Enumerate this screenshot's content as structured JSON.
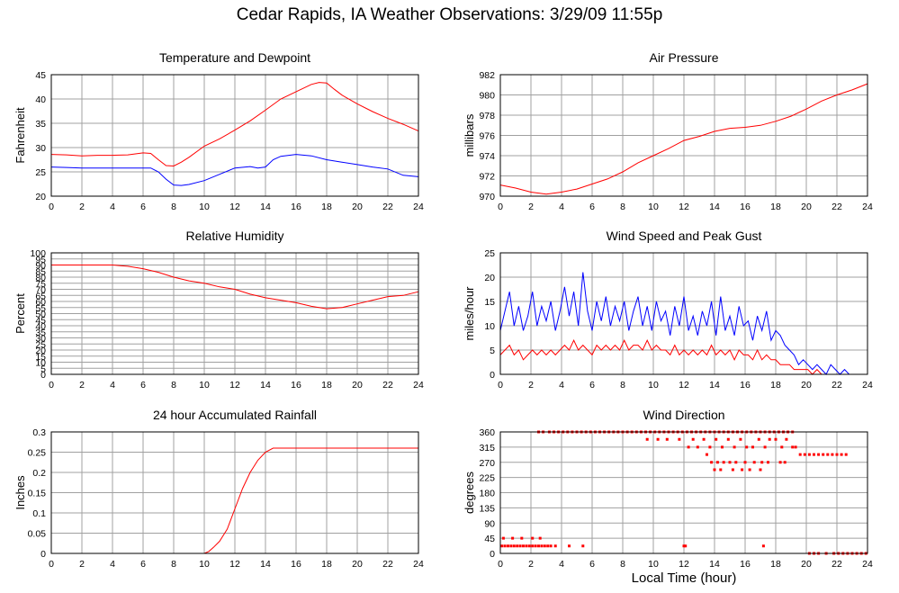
{
  "title": "Cedar Rapids, IA Weather Observations: 3/29/09 11:55p",
  "x_label": "Local Time (hour)",
  "colors": {
    "red": "#ff0000",
    "blue": "#0000ff",
    "grid": "#a0a0a0"
  },
  "chart_data": [
    {
      "id": "temp",
      "type": "line",
      "title": "Temperature and Dewpoint",
      "xlabel": "",
      "ylabel": "Fahrenheit",
      "xlim": [
        0,
        24
      ],
      "ylim": [
        20,
        45
      ],
      "xticks": [
        0,
        2,
        4,
        6,
        8,
        10,
        12,
        14,
        16,
        18,
        20,
        22,
        24
      ],
      "yticks": [
        20,
        25,
        30,
        35,
        40,
        45
      ],
      "grid": true,
      "series": [
        {
          "color": "#ff0000",
          "x": [
            0,
            1,
            2,
            3,
            4,
            5,
            6,
            6.5,
            7,
            7.5,
            8,
            8.5,
            9,
            10,
            11,
            12,
            13,
            14,
            15,
            16,
            17,
            17.5,
            18,
            18.5,
            19,
            20,
            21,
            22,
            23,
            24
          ],
          "y": [
            28.6,
            28.5,
            28.3,
            28.4,
            28.4,
            28.5,
            28.9,
            28.8,
            27.5,
            26.3,
            26.2,
            27,
            28,
            30.3,
            31.8,
            33.6,
            35.5,
            37.7,
            40,
            41.5,
            43,
            43.4,
            43.3,
            42,
            40.8,
            39,
            37.4,
            36,
            34.8,
            33.4
          ]
        },
        {
          "color": "#0000ff",
          "x": [
            0,
            1,
            2,
            3,
            4,
            5,
            6,
            6.5,
            7,
            7.5,
            8,
            8.5,
            9,
            10,
            11,
            12,
            13,
            13.5,
            14,
            14.5,
            15,
            16,
            17,
            18,
            19,
            20,
            21,
            22,
            23,
            24
          ],
          "y": [
            26,
            25.9,
            25.8,
            25.8,
            25.8,
            25.8,
            25.8,
            25.8,
            25,
            23.5,
            22.3,
            22.2,
            22.4,
            23.2,
            24.5,
            25.8,
            26.1,
            25.8,
            26,
            27.5,
            28.2,
            28.6,
            28.3,
            27.5,
            27,
            26.5,
            26,
            25.6,
            24.3,
            24
          ]
        }
      ]
    },
    {
      "id": "pressure",
      "type": "line",
      "title": "Air Pressure",
      "xlabel": "",
      "ylabel": "millibars",
      "xlim": [
        0,
        24
      ],
      "ylim": [
        970,
        982
      ],
      "xticks": [
        0,
        2,
        4,
        6,
        8,
        10,
        12,
        14,
        16,
        18,
        20,
        22,
        24
      ],
      "yticks": [
        970,
        972,
        974,
        976,
        978,
        980,
        982
      ],
      "grid": true,
      "series": [
        {
          "color": "#ff0000",
          "x": [
            0,
            1,
            2,
            3,
            4,
            5,
            6,
            7,
            8,
            9,
            10,
            11,
            12,
            13,
            14,
            15,
            16,
            17,
            18,
            19,
            20,
            21,
            22,
            23,
            24
          ],
          "y": [
            971.1,
            970.8,
            970.4,
            970.2,
            970.4,
            970.7,
            971.2,
            971.7,
            972.4,
            973.3,
            974,
            974.7,
            975.5,
            975.9,
            976.4,
            976.7,
            976.8,
            977,
            977.4,
            977.9,
            978.6,
            979.4,
            980,
            980.5,
            981.1
          ]
        }
      ]
    },
    {
      "id": "humidity",
      "type": "line",
      "title": "Relative Humidity",
      "xlabel": "",
      "ylabel": "Percent",
      "xlim": [
        0,
        24
      ],
      "ylim": [
        0,
        100
      ],
      "xticks": [
        0,
        2,
        4,
        6,
        8,
        10,
        12,
        14,
        16,
        18,
        20,
        22,
        24
      ],
      "yticks": [
        0,
        5,
        10,
        15,
        20,
        25,
        30,
        35,
        40,
        45,
        50,
        55,
        60,
        65,
        70,
        75,
        80,
        85,
        90,
        95,
        100
      ],
      "grid": true,
      "series": [
        {
          "color": "#ff0000",
          "x": [
            0,
            1,
            2,
            3,
            4,
            4.5,
            5,
            6,
            7,
            8,
            9,
            10,
            11,
            12,
            13,
            14,
            15,
            16,
            17,
            18,
            19,
            20,
            21,
            22,
            23,
            24
          ],
          "y": [
            90,
            90,
            90,
            90,
            90,
            89.5,
            89,
            87,
            84,
            80,
            77,
            75,
            72,
            70,
            66,
            63,
            61,
            59,
            56,
            54,
            55,
            58,
            61,
            64,
            65,
            68
          ]
        }
      ]
    },
    {
      "id": "wind",
      "type": "line",
      "title": "Wind Speed and Peak Gust",
      "xlabel": "",
      "ylabel": "miles/hour",
      "xlim": [
        0,
        24
      ],
      "ylim": [
        0,
        25
      ],
      "xticks": [
        0,
        2,
        4,
        6,
        8,
        10,
        12,
        14,
        16,
        18,
        20,
        22,
        24
      ],
      "yticks": [
        0,
        5,
        10,
        15,
        20,
        25
      ],
      "grid": true,
      "series": [
        {
          "color": "#0000ff",
          "x": [
            0,
            0.3,
            0.6,
            0.9,
            1.2,
            1.5,
            1.8,
            2.1,
            2.4,
            2.7,
            3,
            3.3,
            3.6,
            3.9,
            4.2,
            4.5,
            4.8,
            5.1,
            5.4,
            5.7,
            6,
            6.3,
            6.6,
            6.9,
            7.2,
            7.5,
            7.8,
            8.1,
            8.4,
            8.7,
            9,
            9.3,
            9.6,
            9.9,
            10.2,
            10.5,
            10.8,
            11.1,
            11.4,
            11.7,
            12,
            12.3,
            12.6,
            12.9,
            13.2,
            13.5,
            13.8,
            14.1,
            14.4,
            14.7,
            15,
            15.3,
            15.6,
            15.9,
            16.2,
            16.5,
            16.8,
            17.1,
            17.4,
            17.7,
            18,
            18.3,
            18.6,
            18.9,
            19.2,
            19.5,
            19.8,
            20.1,
            20.4,
            20.7,
            21,
            21.3,
            21.6,
            21.9,
            22.2,
            22.5,
            22.8,
            23.1,
            23.4,
            23.7,
            24
          ],
          "y": [
            9,
            13,
            17,
            10,
            14,
            9,
            12,
            17,
            10,
            14,
            11,
            15,
            9,
            13,
            18,
            12,
            17,
            10,
            21,
            13,
            9,
            15,
            11,
            16,
            10,
            14,
            11,
            15,
            9,
            13,
            16,
            10,
            14,
            9,
            15,
            11,
            13,
            8,
            14,
            10,
            16,
            9,
            12,
            8,
            13,
            10,
            15,
            8,
            16,
            9,
            12,
            8,
            14,
            10,
            11,
            7,
            12,
            9,
            13,
            7,
            9,
            8,
            6,
            5,
            4,
            2,
            3,
            2,
            1,
            2,
            1,
            0,
            2,
            1,
            0,
            1,
            0,
            0,
            0,
            0,
            0
          ],
          "_note": ""
        },
        {
          "color": "#ff0000",
          "x": [
            0,
            0.3,
            0.6,
            0.9,
            1.2,
            1.5,
            1.8,
            2.1,
            2.4,
            2.7,
            3,
            3.3,
            3.6,
            3.9,
            4.2,
            4.5,
            4.8,
            5.1,
            5.4,
            5.7,
            6,
            6.3,
            6.6,
            6.9,
            7.2,
            7.5,
            7.8,
            8.1,
            8.4,
            8.7,
            9,
            9.3,
            9.6,
            9.9,
            10.2,
            10.5,
            10.8,
            11.1,
            11.4,
            11.7,
            12,
            12.3,
            12.6,
            12.9,
            13.2,
            13.5,
            13.8,
            14.1,
            14.4,
            14.7,
            15,
            15.3,
            15.6,
            15.9,
            16.2,
            16.5,
            16.8,
            17.1,
            17.4,
            17.7,
            18,
            18.3,
            18.6,
            18.9,
            19.2,
            19.5,
            19.8,
            20.1,
            20.4,
            20.7,
            21,
            21.3,
            21.6,
            21.9,
            22.2,
            22.5,
            22.8,
            23.1,
            23.4,
            23.7,
            24
          ],
          "y": [
            4,
            5,
            6,
            4,
            5,
            3,
            4,
            5,
            4,
            5,
            4,
            5,
            4,
            5,
            6,
            5,
            7,
            5,
            6,
            5,
            4,
            6,
            5,
            6,
            5,
            6,
            5,
            7,
            5,
            6,
            6,
            5,
            7,
            5,
            6,
            5,
            5,
            4,
            6,
            4,
            5,
            4,
            5,
            4,
            5,
            4,
            6,
            4,
            5,
            4,
            5,
            3,
            5,
            4,
            4,
            3,
            5,
            3,
            4,
            3,
            3,
            2,
            2,
            2,
            1,
            1,
            1,
            1,
            0,
            1,
            0,
            0,
            0,
            0,
            0,
            0,
            0,
            0,
            0,
            0,
            0
          ]
        }
      ]
    },
    {
      "id": "rain",
      "type": "line",
      "title": "24 hour Accumulated Rainfall",
      "xlabel": "",
      "ylabel": "Inches",
      "xlim": [
        0,
        24
      ],
      "ylim": [
        0,
        0.3
      ],
      "xticks": [
        0,
        2,
        4,
        6,
        8,
        10,
        12,
        14,
        16,
        18,
        20,
        22,
        24
      ],
      "yticks": [
        0,
        0.05,
        0.1,
        0.15,
        0.2,
        0.25,
        0.3
      ],
      "grid": true,
      "series": [
        {
          "color": "#ff0000",
          "x": [
            0,
            10,
            10.3,
            10.6,
            11,
            11.5,
            12,
            12.5,
            13,
            13.5,
            14,
            14.5,
            15,
            24
          ],
          "y": [
            0,
            0,
            0.005,
            0.015,
            0.03,
            0.06,
            0.11,
            0.16,
            0.2,
            0.23,
            0.25,
            0.26,
            0.26,
            0.26
          ]
        }
      ]
    },
    {
      "id": "direction",
      "type": "scatter",
      "title": "Wind Direction",
      "xlabel": "",
      "ylabel": "degrees",
      "xlim": [
        0,
        24
      ],
      "ylim": [
        0,
        360
      ],
      "xticks": [
        0,
        2,
        4,
        6,
        8,
        10,
        12,
        14,
        16,
        18,
        20,
        22,
        24
      ],
      "yticks": [
        0,
        45,
        90,
        135,
        180,
        225,
        270,
        315,
        360
      ],
      "grid": true,
      "series": [
        {
          "color": "#ff0000",
          "x": [
            0.1,
            0.3,
            0.5,
            0.7,
            0.9,
            1.1,
            1.3,
            1.5,
            1.7,
            1.9,
            2.1,
            2.3,
            2.5,
            2.7,
            2.9,
            3.1,
            3.3,
            3.6,
            2.5,
            2.8,
            3.2,
            3.5,
            3.8,
            4.1,
            4.4,
            4.7,
            5,
            5.3,
            5.6,
            5.9,
            6.2,
            6.5,
            6.8,
            7.1,
            7.4,
            7.7,
            8,
            8.3,
            8.6,
            8.9,
            9.2,
            9.5,
            9.8,
            10.1,
            10.4,
            10.7,
            11,
            11.3,
            11.6,
            11.9,
            12.2,
            12.5,
            12.8,
            13.1,
            13.4,
            13.7,
            14,
            14.3,
            14.6,
            14.9,
            15.2,
            15.5,
            15.8,
            16.1,
            16.4,
            16.7,
            17,
            17.3,
            17.6,
            17.9,
            18.2,
            18.5,
            18.8,
            19.1,
            0.2,
            0.8,
            1.4,
            2.1,
            2.6,
            9.6,
            10.3,
            10.9,
            11.7,
            12.3,
            12.6,
            12.9,
            13.3,
            13.7,
            14.1,
            14.5,
            14.9,
            15.3,
            15.7,
            16.1,
            16.5,
            16.9,
            17.3,
            17.6,
            18,
            18.4,
            18.7,
            19.1,
            19.3,
            19.6,
            19.9,
            20.2,
            20.5,
            20.8,
            21.1,
            21.4,
            21.7,
            22.0,
            22.3,
            22.6,
            13.8,
            14.2,
            14.6,
            15.0,
            15.4,
            16.0,
            16.6,
            17.1,
            17.5,
            18.3,
            18.6,
            13.5,
            14.0,
            14.4,
            15.2,
            15.8,
            16.3,
            17.0,
            12.0,
            12.1,
            17.2,
            4.5,
            5.4,
            20.2,
            20.5,
            20.8,
            21.3,
            21.8,
            22.1,
            22.4,
            22.7,
            23.0,
            23.3,
            23.6,
            23.9
          ],
          "y": [
            22,
            22,
            22,
            22,
            22,
            22,
            22,
            22,
            22,
            22,
            22,
            22,
            22,
            22,
            22,
            22,
            22,
            22,
            360,
            360,
            360,
            360,
            360,
            360,
            360,
            360,
            360,
            360,
            360,
            360,
            360,
            360,
            360,
            360,
            360,
            360,
            360,
            360,
            360,
            360,
            360,
            360,
            360,
            360,
            360,
            360,
            360,
            360,
            360,
            360,
            360,
            360,
            360,
            360,
            360,
            360,
            360,
            360,
            360,
            360,
            360,
            360,
            360,
            360,
            360,
            360,
            360,
            360,
            360,
            360,
            360,
            360,
            360,
            360,
            45,
            45,
            45,
            45,
            45,
            338,
            338,
            338,
            338,
            315,
            338,
            315,
            338,
            315,
            338,
            315,
            338,
            315,
            338,
            315,
            315,
            338,
            315,
            338,
            338,
            315,
            338,
            315,
            315,
            293,
            293,
            293,
            293,
            293,
            293,
            293,
            293,
            293,
            293,
            293,
            270,
            270,
            270,
            270,
            270,
            270,
            270,
            270,
            270,
            270,
            270,
            293,
            248,
            248,
            248,
            248,
            248,
            248,
            22,
            22,
            22,
            22,
            22,
            0,
            0,
            0,
            0,
            0,
            0,
            0,
            0,
            0,
            0,
            0,
            0
          ]
        }
      ]
    }
  ]
}
